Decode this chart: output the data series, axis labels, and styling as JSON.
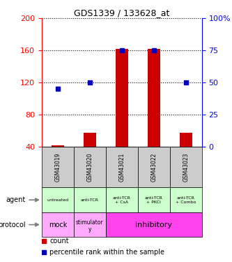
{
  "title": "GDS1339 / 133628_at",
  "samples": [
    "GSM43019",
    "GSM43020",
    "GSM43021",
    "GSM43022",
    "GSM43023"
  ],
  "count_values": [
    42,
    57,
    162,
    162,
    57
  ],
  "percentile_values": [
    45,
    50,
    75,
    75,
    50
  ],
  "left_ylim": [
    40,
    200
  ],
  "left_yticks": [
    40,
    80,
    120,
    160,
    200
  ],
  "right_ylim": [
    0,
    100
  ],
  "right_yticks": [
    0,
    25,
    50,
    75,
    100
  ],
  "bar_color": "#cc0000",
  "dot_color": "#0000bb",
  "agent_labels": [
    "untreated",
    "anti-TCR",
    "anti-TCR\n+ CsA",
    "anti-TCR\n+ PKCi",
    "anti-TCR\n+ Combo"
  ],
  "agent_bg": "#ccffcc",
  "gsm_bg": "#cccccc",
  "mock_bg": "#ffaaff",
  "stim_bg": "#ffaaff",
  "inhib_bg": "#ff44ee",
  "legend_count_color": "#cc0000",
  "legend_pct_color": "#0000bb"
}
